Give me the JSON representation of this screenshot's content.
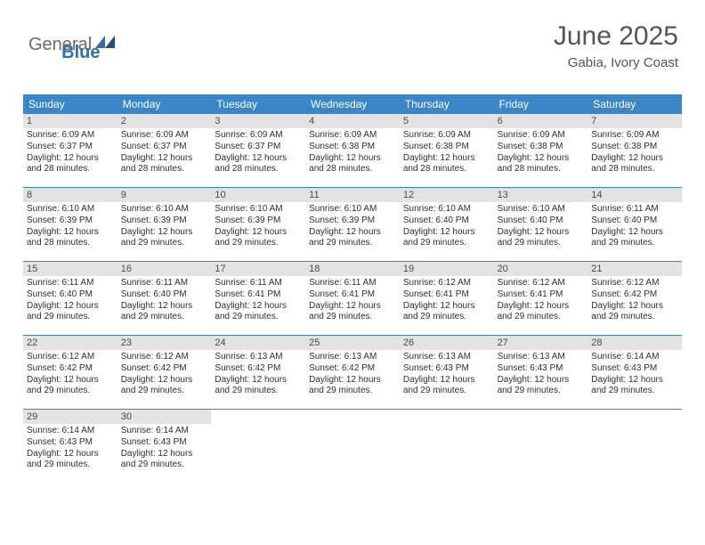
{
  "logo": {
    "word1": "General",
    "word2": "Blue"
  },
  "header": {
    "month": "June 2025",
    "location": "Gabia, Ivory Coast"
  },
  "colors": {
    "header_bg": "#3b86c6",
    "header_fg": "#ffffff",
    "daynum_bg": "#e3e3e3",
    "rule": "#3b86c6"
  },
  "day_labels": [
    "Sunday",
    "Monday",
    "Tuesday",
    "Wednesday",
    "Thursday",
    "Friday",
    "Saturday"
  ],
  "weeks": [
    [
      {
        "n": "1",
        "sr": "Sunrise: 6:09 AM",
        "ss": "Sunset: 6:37 PM",
        "d1": "Daylight: 12 hours",
        "d2": "and 28 minutes."
      },
      {
        "n": "2",
        "sr": "Sunrise: 6:09 AM",
        "ss": "Sunset: 6:37 PM",
        "d1": "Daylight: 12 hours",
        "d2": "and 28 minutes."
      },
      {
        "n": "3",
        "sr": "Sunrise: 6:09 AM",
        "ss": "Sunset: 6:37 PM",
        "d1": "Daylight: 12 hours",
        "d2": "and 28 minutes."
      },
      {
        "n": "4",
        "sr": "Sunrise: 6:09 AM",
        "ss": "Sunset: 6:38 PM",
        "d1": "Daylight: 12 hours",
        "d2": "and 28 minutes."
      },
      {
        "n": "5",
        "sr": "Sunrise: 6:09 AM",
        "ss": "Sunset: 6:38 PM",
        "d1": "Daylight: 12 hours",
        "d2": "and 28 minutes."
      },
      {
        "n": "6",
        "sr": "Sunrise: 6:09 AM",
        "ss": "Sunset: 6:38 PM",
        "d1": "Daylight: 12 hours",
        "d2": "and 28 minutes."
      },
      {
        "n": "7",
        "sr": "Sunrise: 6:09 AM",
        "ss": "Sunset: 6:38 PM",
        "d1": "Daylight: 12 hours",
        "d2": "and 28 minutes."
      }
    ],
    [
      {
        "n": "8",
        "sr": "Sunrise: 6:10 AM",
        "ss": "Sunset: 6:39 PM",
        "d1": "Daylight: 12 hours",
        "d2": "and 28 minutes."
      },
      {
        "n": "9",
        "sr": "Sunrise: 6:10 AM",
        "ss": "Sunset: 6:39 PM",
        "d1": "Daylight: 12 hours",
        "d2": "and 29 minutes."
      },
      {
        "n": "10",
        "sr": "Sunrise: 6:10 AM",
        "ss": "Sunset: 6:39 PM",
        "d1": "Daylight: 12 hours",
        "d2": "and 29 minutes."
      },
      {
        "n": "11",
        "sr": "Sunrise: 6:10 AM",
        "ss": "Sunset: 6:39 PM",
        "d1": "Daylight: 12 hours",
        "d2": "and 29 minutes."
      },
      {
        "n": "12",
        "sr": "Sunrise: 6:10 AM",
        "ss": "Sunset: 6:40 PM",
        "d1": "Daylight: 12 hours",
        "d2": "and 29 minutes."
      },
      {
        "n": "13",
        "sr": "Sunrise: 6:10 AM",
        "ss": "Sunset: 6:40 PM",
        "d1": "Daylight: 12 hours",
        "d2": "and 29 minutes."
      },
      {
        "n": "14",
        "sr": "Sunrise: 6:11 AM",
        "ss": "Sunset: 6:40 PM",
        "d1": "Daylight: 12 hours",
        "d2": "and 29 minutes."
      }
    ],
    [
      {
        "n": "15",
        "sr": "Sunrise: 6:11 AM",
        "ss": "Sunset: 6:40 PM",
        "d1": "Daylight: 12 hours",
        "d2": "and 29 minutes."
      },
      {
        "n": "16",
        "sr": "Sunrise: 6:11 AM",
        "ss": "Sunset: 6:40 PM",
        "d1": "Daylight: 12 hours",
        "d2": "and 29 minutes."
      },
      {
        "n": "17",
        "sr": "Sunrise: 6:11 AM",
        "ss": "Sunset: 6:41 PM",
        "d1": "Daylight: 12 hours",
        "d2": "and 29 minutes."
      },
      {
        "n": "18",
        "sr": "Sunrise: 6:11 AM",
        "ss": "Sunset: 6:41 PM",
        "d1": "Daylight: 12 hours",
        "d2": "and 29 minutes."
      },
      {
        "n": "19",
        "sr": "Sunrise: 6:12 AM",
        "ss": "Sunset: 6:41 PM",
        "d1": "Daylight: 12 hours",
        "d2": "and 29 minutes."
      },
      {
        "n": "20",
        "sr": "Sunrise: 6:12 AM",
        "ss": "Sunset: 6:41 PM",
        "d1": "Daylight: 12 hours",
        "d2": "and 29 minutes."
      },
      {
        "n": "21",
        "sr": "Sunrise: 6:12 AM",
        "ss": "Sunset: 6:42 PM",
        "d1": "Daylight: 12 hours",
        "d2": "and 29 minutes."
      }
    ],
    [
      {
        "n": "22",
        "sr": "Sunrise: 6:12 AM",
        "ss": "Sunset: 6:42 PM",
        "d1": "Daylight: 12 hours",
        "d2": "and 29 minutes."
      },
      {
        "n": "23",
        "sr": "Sunrise: 6:12 AM",
        "ss": "Sunset: 6:42 PM",
        "d1": "Daylight: 12 hours",
        "d2": "and 29 minutes."
      },
      {
        "n": "24",
        "sr": "Sunrise: 6:13 AM",
        "ss": "Sunset: 6:42 PM",
        "d1": "Daylight: 12 hours",
        "d2": "and 29 minutes."
      },
      {
        "n": "25",
        "sr": "Sunrise: 6:13 AM",
        "ss": "Sunset: 6:42 PM",
        "d1": "Daylight: 12 hours",
        "d2": "and 29 minutes."
      },
      {
        "n": "26",
        "sr": "Sunrise: 6:13 AM",
        "ss": "Sunset: 6:43 PM",
        "d1": "Daylight: 12 hours",
        "d2": "and 29 minutes."
      },
      {
        "n": "27",
        "sr": "Sunrise: 6:13 AM",
        "ss": "Sunset: 6:43 PM",
        "d1": "Daylight: 12 hours",
        "d2": "and 29 minutes."
      },
      {
        "n": "28",
        "sr": "Sunrise: 6:14 AM",
        "ss": "Sunset: 6:43 PM",
        "d1": "Daylight: 12 hours",
        "d2": "and 29 minutes."
      }
    ],
    [
      {
        "n": "29",
        "sr": "Sunrise: 6:14 AM",
        "ss": "Sunset: 6:43 PM",
        "d1": "Daylight: 12 hours",
        "d2": "and 29 minutes."
      },
      {
        "n": "30",
        "sr": "Sunrise: 6:14 AM",
        "ss": "Sunset: 6:43 PM",
        "d1": "Daylight: 12 hours",
        "d2": "and 29 minutes."
      },
      {
        "empty": true
      },
      {
        "empty": true
      },
      {
        "empty": true
      },
      {
        "empty": true
      },
      {
        "empty": true
      }
    ]
  ]
}
